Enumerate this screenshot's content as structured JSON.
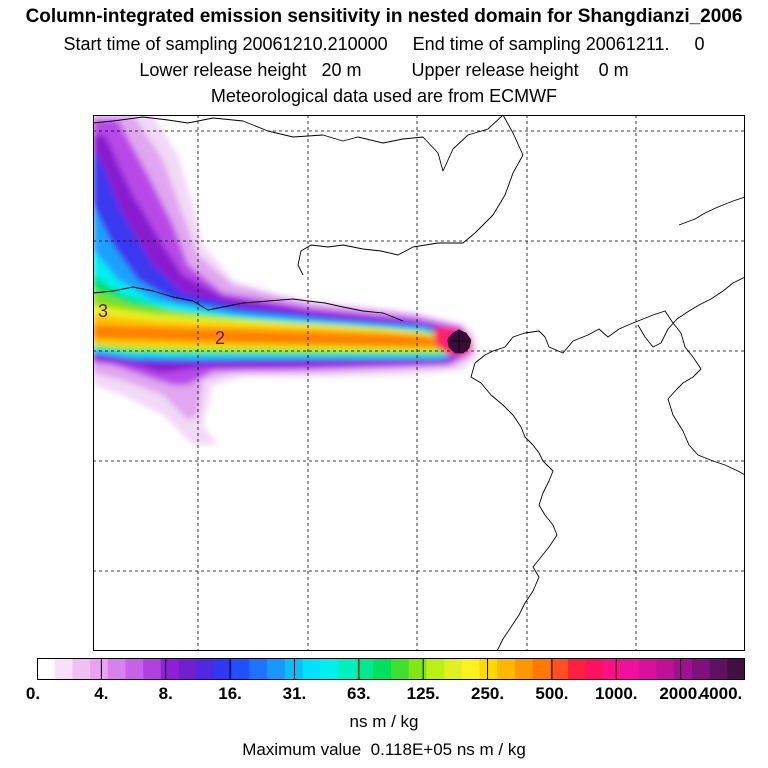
{
  "header": {
    "title": "Column-integrated emission sensitivity in nested domain for Shangdianzi_2006",
    "sampling_line": "Start time of sampling 20061210.210000     End time of sampling 20061211.     0",
    "release_line": "Lower release height   20 m          Upper release height    0 m",
    "meteo_line": "Meteorological data used are from ECMWF"
  },
  "map": {
    "contour_labels": [
      "3",
      "2"
    ],
    "plume_colors": [
      "#f2d9f7",
      "#e0a6ef",
      "#b848e8",
      "#8a1fd0",
      "#3a38f0",
      "#1ea0ff",
      "#00f0f0",
      "#00e070",
      "#7fe020",
      "#e8f020",
      "#ffc000",
      "#ff8000",
      "#ff2060",
      "#ff10a0",
      "#c0108a",
      "#4a0a3a"
    ],
    "grid": "dashed"
  },
  "colorbar": {
    "colors": [
      "#ffffff",
      "#f8e0f8",
      "#f0c0f4",
      "#e8a4f0",
      "#d880ec",
      "#c860e8",
      "#b040e0",
      "#9020d8",
      "#7020d0",
      "#5028e0",
      "#3038f0",
      "#2050ff",
      "#1c74ff",
      "#1898ff",
      "#10bcff",
      "#00e0ff",
      "#00f0f0",
      "#00f0c0",
      "#00e890",
      "#00e060",
      "#40e030",
      "#80e818",
      "#b8f018",
      "#e0f020",
      "#fff020",
      "#ffd800",
      "#ffb800",
      "#ff9800",
      "#ff7800",
      "#ff5020",
      "#ff2040",
      "#ff1060",
      "#ff1088",
      "#f010a0",
      "#d810a0",
      "#c01098",
      "#a01090",
      "#801080",
      "#601060",
      "#401040"
    ],
    "tick_labels": [
      "0.",
      "4.",
      "8.",
      "16.",
      "31.",
      "63.",
      "125.",
      "250.",
      "500.",
      "1000.",
      "2000.",
      "4000."
    ],
    "units": "ns m / kg"
  },
  "footer": {
    "max_value": "Maximum value  0.118E+05 ns m / kg"
  }
}
